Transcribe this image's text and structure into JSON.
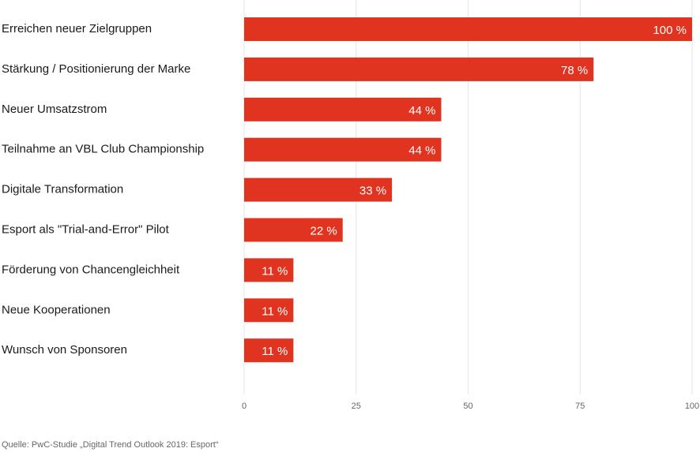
{
  "chart_data": {
    "type": "bar",
    "orientation": "horizontal",
    "categories": [
      "Erreichen neuer Zielgruppen",
      "Stärkung / Positionierung der Marke",
      "Neuer Umsatzstrom",
      "Teilnahme an VBL Club Championship",
      "Digitale Transformation",
      "Esport als \"Trial-and-Error\" Pilot",
      "Förderung von Chancengleichheit",
      "Neue Kooperationen",
      "Wunsch von Sponsoren"
    ],
    "values": [
      100,
      78,
      44,
      44,
      33,
      22,
      11,
      11,
      11
    ],
    "value_labels": [
      "100 %",
      "78 %",
      "44 %",
      "44 %",
      "33 %",
      "22 %",
      "11 %",
      "11 %",
      "11 %"
    ],
    "xticks": [
      "0",
      "25",
      "50",
      "75",
      "100"
    ],
    "xlim": [
      0,
      100
    ],
    "grid": "vertical",
    "bar_color": "#e03320"
  },
  "source": "Quelle: PwC-Studie „Digital Trend Outlook 2019: Esport“"
}
